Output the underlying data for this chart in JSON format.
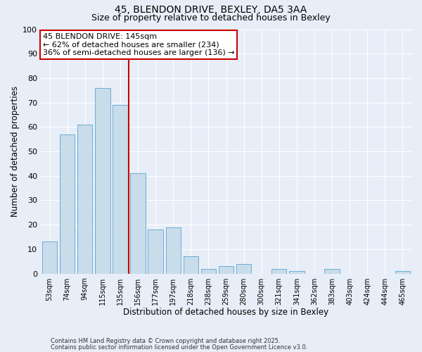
{
  "title1": "45, BLENDON DRIVE, BEXLEY, DA5 3AA",
  "title2": "Size of property relative to detached houses in Bexley",
  "xlabel": "Distribution of detached houses by size in Bexley",
  "ylabel": "Number of detached properties",
  "categories": [
    "53sqm",
    "74sqm",
    "94sqm",
    "115sqm",
    "135sqm",
    "156sqm",
    "177sqm",
    "197sqm",
    "218sqm",
    "238sqm",
    "259sqm",
    "280sqm",
    "300sqm",
    "321sqm",
    "341sqm",
    "362sqm",
    "383sqm",
    "403sqm",
    "424sqm",
    "444sqm",
    "465sqm"
  ],
  "values": [
    13,
    57,
    61,
    76,
    69,
    41,
    18,
    19,
    7,
    2,
    3,
    4,
    0,
    2,
    1,
    0,
    2,
    0,
    0,
    0,
    1
  ],
  "bar_color": "#c9dcea",
  "bar_edge_color": "#6aadd5",
  "vline_x": 4.5,
  "vline_color": "#cc0000",
  "annotation_title": "45 BLENDON DRIVE: 145sqm",
  "annotation_line1": "← 62% of detached houses are smaller (234)",
  "annotation_line2": "36% of semi-detached houses are larger (136) →",
  "annotation_box_color": "#ffffff",
  "annotation_box_edge": "#cc0000",
  "ylim": [
    0,
    100
  ],
  "background_color": "#e8eef8",
  "grid_color": "#ffffff",
  "footer1": "Contains HM Land Registry data © Crown copyright and database right 2025.",
  "footer2": "Contains public sector information licensed under the Open Government Licence v3.0."
}
